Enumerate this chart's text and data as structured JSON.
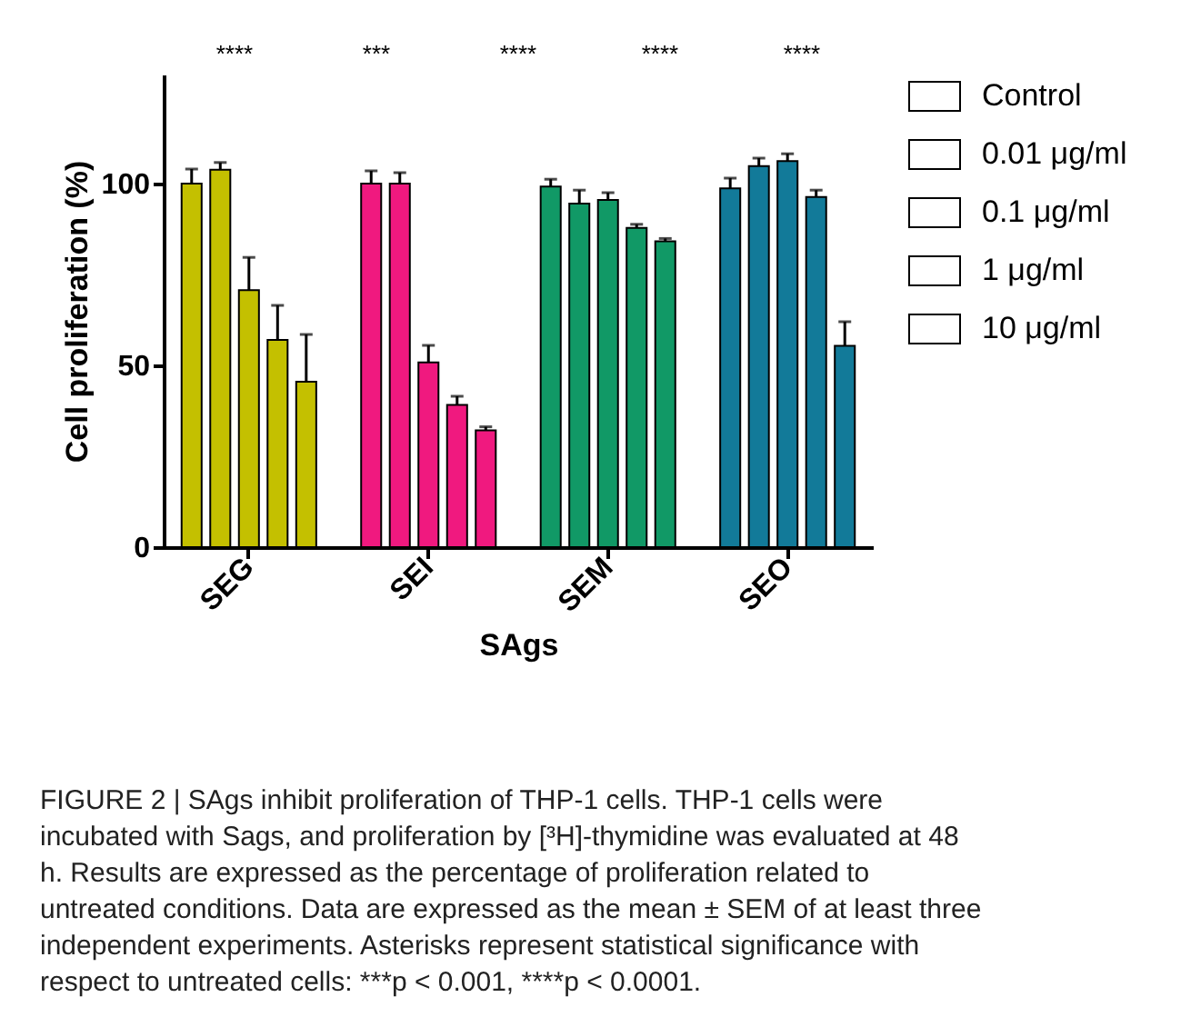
{
  "chart_data": {
    "type": "bar",
    "xlabel": "SAgs",
    "ylabel": "Cell proliferation (%)",
    "categories": [
      "SEG",
      "SEI",
      "SEM",
      "SEO"
    ],
    "series": [
      {
        "name": "Control",
        "color": "#ffffff",
        "colors": [
          "#c4c000",
          "#f0197f",
          "#119966",
          "#127a99"
        ],
        "values": [
          100,
          100,
          99.2,
          98.7
        ],
        "errors": [
          4,
          3.5,
          2,
          2.8
        ]
      },
      {
        "name": "0.01 μg/ml",
        "color": "#ffffff",
        "colors": [
          "#c4c000",
          "#f0197f",
          "#119966",
          "#127a99"
        ],
        "values": [
          103.8,
          100,
          94.5,
          104.8
        ],
        "errors": [
          2,
          3,
          3.7,
          2.2
        ]
      },
      {
        "name": "0.1 μg/ml",
        "color": "#ffffff",
        "colors": [
          "#c4c000",
          "#f0197f",
          "#119966",
          "#127a99"
        ],
        "values": [
          70.7,
          50.8,
          95.5,
          106.2
        ],
        "errors": [
          9,
          4.7,
          2,
          2
        ]
      },
      {
        "name": "1 μg/ml",
        "color": "#ffffff",
        "colors": [
          "#c4c000",
          "#f0197f",
          "#119966",
          "#127a99"
        ],
        "values": [
          57,
          39.1,
          87.8,
          96.3
        ],
        "errors": [
          9.5,
          2.4,
          1,
          1.9
        ]
      },
      {
        "name": "10 μg/ml",
        "color": "#ffffff",
        "colors": [
          "#c4c000",
          "#f0197f",
          "#119966",
          "#127a99"
        ],
        "values": [
          45.5,
          32.1,
          84.1,
          55.4
        ],
        "errors": [
          13,
          1,
          0.8,
          6.6
        ]
      }
    ],
    "ylim": [
      0,
      130
    ],
    "yticks": [
      0,
      50,
      100
    ],
    "grid": false,
    "legend": "top right",
    "annotations": [
      "****",
      "***",
      "****",
      "****",
      "****",
      "FIGURE 2 | SAgs inhibit proliferation of THP-1 cells. THP-1 cells were incubated with Sags, and proliferation by [³H]-thymidine was evaluated at 48 h. Results are expressed as the percentage of proliferation related to untreated conditions. Data are expressed as the mean ± SEM of at least three independent experiments. Asterisks represent statistical significance with respect to untreated cells: ***p < 0.001, ****p < 0.0001."
    ]
  }
}
